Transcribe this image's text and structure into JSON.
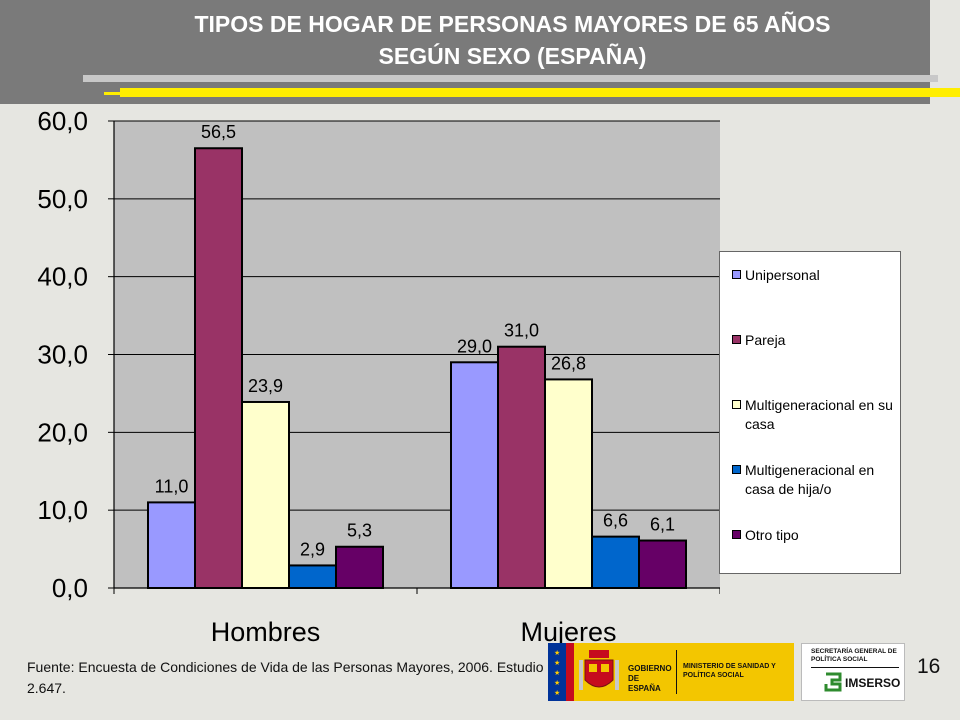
{
  "header": {
    "title_line1": "TIPOS DE HOGAR DE PERSONAS MAYORES DE 65 AÑOS",
    "title_line2": "SEGÚN SEXO (ESPAÑA)"
  },
  "chart_data": {
    "type": "bar",
    "categories": [
      "Hombres",
      "Mujeres"
    ],
    "series": [
      {
        "name": "Unipersonal",
        "values": [
          11.0,
          29.0
        ],
        "labels": [
          "11,0",
          "29,0"
        ],
        "color": "#9999ff"
      },
      {
        "name": "Pareja",
        "values": [
          56.5,
          31.0
        ],
        "labels": [
          "56,5",
          "31,0"
        ],
        "color": "#993366"
      },
      {
        "name": "Multigeneracional en su casa",
        "values": [
          23.9,
          26.8
        ],
        "labels": [
          "23,9",
          "26,8"
        ],
        "color": "#ffffcc"
      },
      {
        "name": "Multigeneracional en casa de hija/o",
        "values": [
          2.9,
          6.6
        ],
        "labels": [
          "2,9",
          "6,6"
        ],
        "color": "#0066cc"
      },
      {
        "name": "Otro tipo",
        "values": [
          5.3,
          6.1
        ],
        "labels": [
          "5,3",
          "6,1"
        ],
        "color": "#660066"
      }
    ],
    "ylim": [
      0,
      60
    ],
    "yticks": [
      0,
      10,
      20,
      30,
      40,
      50,
      60
    ],
    "ytick_labels": [
      "0,0",
      "10,0",
      "20,0",
      "30,0",
      "40,0",
      "50,0",
      "60,0"
    ],
    "grid": true,
    "plot_background": "#c0c0c0",
    "legend_position": "right"
  },
  "legend": {
    "items": [
      {
        "text": "Unipersonal",
        "color": "#9999ff"
      },
      {
        "text": "Pareja",
        "color": "#993366"
      },
      {
        "text": "Multigeneracional en su casa",
        "color": "#ffffcc"
      },
      {
        "text": "Multigeneracional en casa de hija/o",
        "color": "#0066cc"
      },
      {
        "text": "Otro tipo",
        "color": "#660066"
      }
    ]
  },
  "footer": {
    "source": "Fuente: Encuesta de Condiciones de Vida de las Personas Mayores, 2006. Estudio 2.647.",
    "page_number": "16"
  },
  "logos": {
    "gobierno": "GOBIERNO DE ESPAÑA",
    "ministerio": "MINISTERIO DE SANIDAD Y POLÍTICA SOCIAL",
    "secretaria": "SECRETARÍA GENERAL DE POLÍTICA SOCIAL",
    "imserso": "IMSERSO"
  },
  "colors": {
    "header_bg": "#7a7a7a",
    "accent_yellow": "#ffee00",
    "accent_gray": "#c8c8c8"
  }
}
